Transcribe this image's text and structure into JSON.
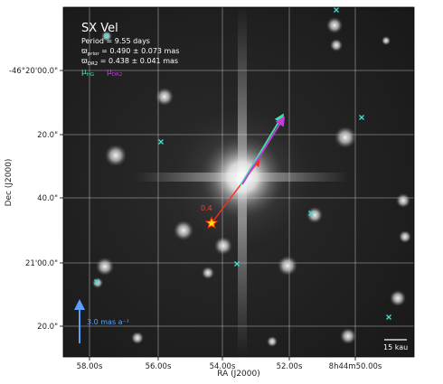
{
  "title": "SX Vel",
  "period_line": "Period =   9.55 days",
  "parallax_lines": [
    {
      "symbol": "ϖ",
      "sub": "prior",
      "text": " = 0.490 ± 0.073 mas"
    },
    {
      "symbol": "ϖ",
      "sub": "DR2",
      "text": " = 0.438 ± 0.041 mas"
    }
  ],
  "legend": [
    {
      "symbol": "μ",
      "sub": "HG",
      "color": "#3fe6a0"
    },
    {
      "symbol": "μ",
      "sub": "DR2",
      "color": "#c43cdf"
    }
  ],
  "axes": {
    "xlabel": "RA (J2000)",
    "ylabel": "Dec (J2000)",
    "xticks": [
      "58.00s",
      "56.00s",
      "54.00s",
      "52.00s",
      "8h44m50.00s"
    ],
    "yticks": [
      "-46°20'00.0\"",
      "20.0\"",
      "40.0\"",
      "21'00.0\"",
      "20.0\""
    ]
  },
  "annotation_fragment": "0.4",
  "scale_arrow_label": "3.0 mas a⁻¹",
  "scalebar_label": "15 kau",
  "colors": {
    "title": "#ffffff",
    "mu_hg": "#3fe6a0",
    "mu_dr2": "#c43cdf",
    "red_arrow": "#ff2a1a",
    "blue_arrow": "#5aa0ff",
    "star_marker": "#ffe000",
    "star_edge": "#ff2000",
    "field_star_marker": "#40e0d0"
  }
}
